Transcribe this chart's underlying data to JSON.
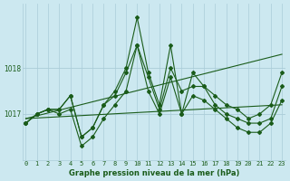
{
  "title": "Graphe pression niveau de la mer (hPa)",
  "bg_color": "#cce8f0",
  "line_color": "#1a5c1a",
  "grid_color": "#aaccd8",
  "ylim": [
    1016.0,
    1019.4
  ],
  "yticks": [
    1017,
    1018
  ],
  "xlim": [
    -0.3,
    23.3
  ],
  "xticks": [
    0,
    1,
    2,
    3,
    4,
    5,
    6,
    7,
    8,
    9,
    10,
    11,
    12,
    13,
    14,
    15,
    16,
    17,
    18,
    19,
    20,
    21,
    22,
    23
  ],
  "series_volatile": {
    "x": [
      0,
      1,
      2,
      3,
      4,
      5,
      6,
      7,
      8,
      9,
      10,
      11,
      12,
      13,
      14,
      15,
      16,
      17,
      18,
      19,
      20,
      21,
      22,
      23
    ],
    "y": [
      1016.8,
      1017.0,
      1017.1,
      1017.1,
      1017.4,
      1016.5,
      1016.7,
      1017.2,
      1017.5,
      1018.0,
      1019.1,
      1017.9,
      1017.2,
      1018.5,
      1017.0,
      1017.9,
      1017.6,
      1017.4,
      1017.2,
      1017.1,
      1016.9,
      1017.0,
      1017.2,
      1017.9
    ]
  },
  "series_mid": {
    "x": [
      0,
      1,
      2,
      3,
      4,
      5,
      6,
      7,
      8,
      9,
      10,
      11,
      12,
      13,
      14,
      15,
      16,
      17,
      18,
      19,
      20,
      21,
      22,
      23
    ],
    "y": [
      1016.8,
      1017.0,
      1017.1,
      1017.1,
      1017.4,
      1016.5,
      1016.7,
      1017.2,
      1017.4,
      1017.9,
      1018.5,
      1017.8,
      1017.1,
      1018.0,
      1017.5,
      1017.6,
      1017.6,
      1017.2,
      1017.0,
      1016.9,
      1016.8,
      1016.8,
      1016.9,
      1017.6
    ]
  },
  "series_low": {
    "x": [
      0,
      1,
      2,
      3,
      4,
      5,
      6,
      7,
      8,
      9,
      10,
      11,
      12,
      13,
      14,
      15,
      16,
      17,
      18,
      19,
      20,
      21,
      22,
      23
    ],
    "y": [
      1016.8,
      1017.0,
      1017.1,
      1017.0,
      1017.1,
      1016.3,
      1016.5,
      1016.9,
      1017.2,
      1017.5,
      1018.5,
      1017.5,
      1017.0,
      1017.8,
      1017.0,
      1017.4,
      1017.3,
      1017.1,
      1016.9,
      1016.7,
      1016.6,
      1016.6,
      1016.8,
      1017.3
    ]
  },
  "trend_upper": {
    "x": [
      0,
      23
    ],
    "y": [
      1016.9,
      1018.3
    ]
  },
  "trend_lower": {
    "x": [
      0,
      23
    ],
    "y": [
      1016.9,
      1017.2
    ]
  }
}
